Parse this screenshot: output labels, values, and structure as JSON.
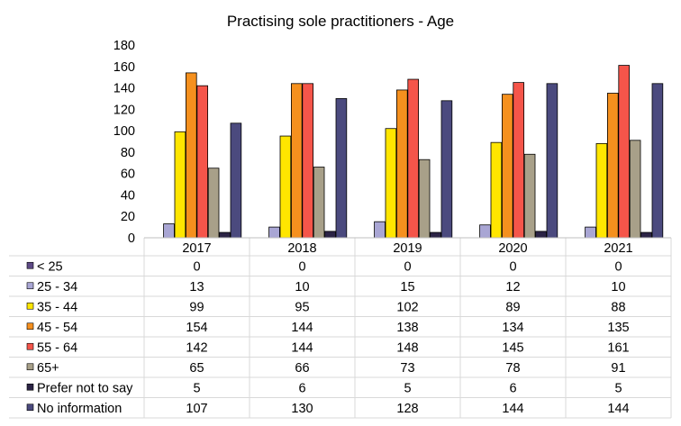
{
  "chart_data": {
    "type": "bar",
    "title": "Practising sole practitioners - Age",
    "categories": [
      "2017",
      "2018",
      "2019",
      "2020",
      "2021"
    ],
    "ylim": [
      0,
      180
    ],
    "yticks": [
      0,
      20,
      40,
      60,
      80,
      100,
      120,
      140,
      160,
      180
    ],
    "grid": false,
    "legend": "data-table-below",
    "series": [
      {
        "name": "< 25",
        "color": "#5e4a86",
        "values": [
          0,
          0,
          0,
          0,
          0
        ]
      },
      {
        "name": "25 - 34",
        "color": "#a9a6d4",
        "values": [
          13,
          10,
          15,
          12,
          10
        ]
      },
      {
        "name": "35 - 44",
        "color": "#ffe600",
        "values": [
          99,
          95,
          102,
          89,
          88
        ]
      },
      {
        "name": "45 - 54",
        "color": "#f5901e",
        "values": [
          154,
          144,
          138,
          134,
          135
        ]
      },
      {
        "name": "55 - 64",
        "color": "#f5554a",
        "values": [
          142,
          144,
          148,
          145,
          161
        ]
      },
      {
        "name": "65+",
        "color": "#a8a089",
        "values": [
          65,
          66,
          73,
          78,
          91
        ]
      },
      {
        "name": "Prefer not to say",
        "color": "#2b2345",
        "values": [
          5,
          6,
          5,
          6,
          5
        ]
      },
      {
        "name": "No information",
        "color": "#4b4a7e",
        "values": [
          107,
          130,
          128,
          144,
          144
        ]
      }
    ]
  }
}
